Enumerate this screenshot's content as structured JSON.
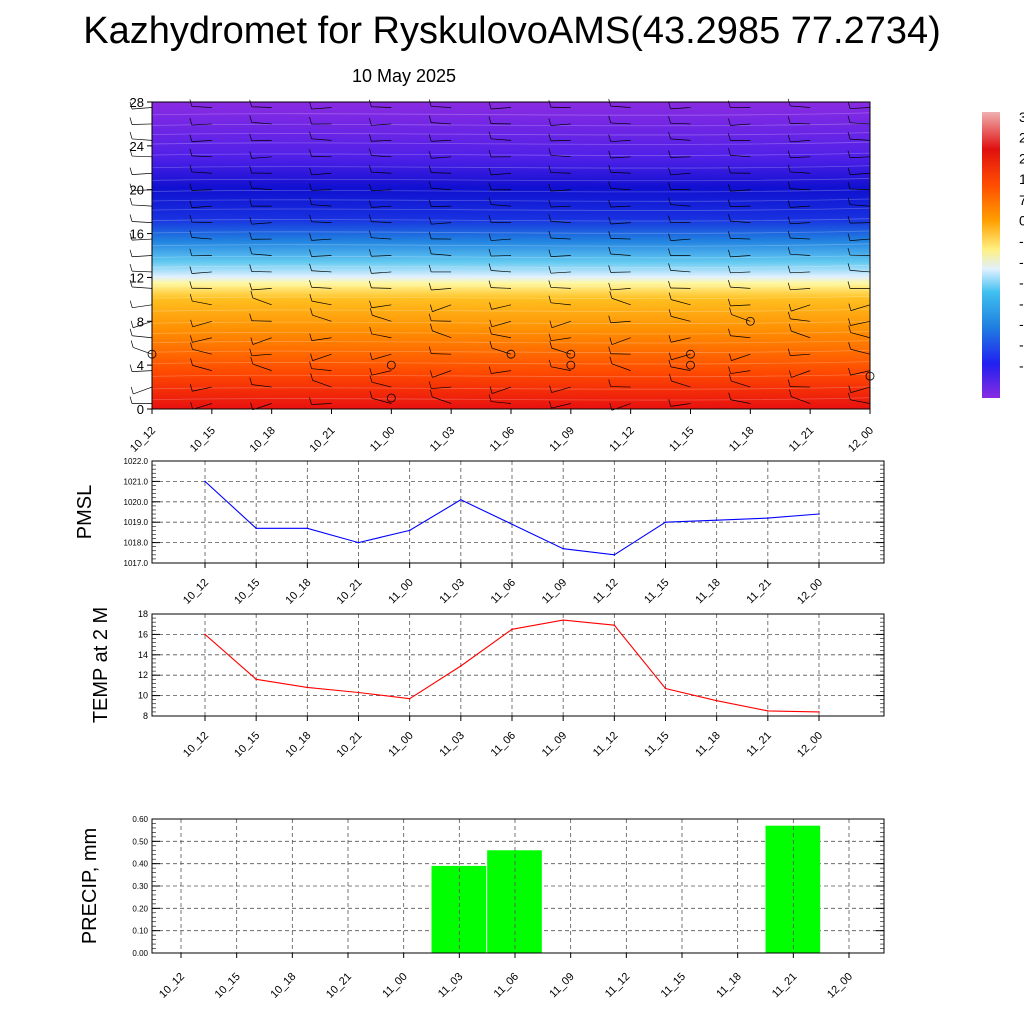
{
  "header": {
    "title": "Kazhydromet for RyskulovoAMS(43.2985 77.2734)",
    "date": "10 May 2025"
  },
  "chart_data": [
    {
      "type": "heatmap",
      "title": "",
      "x_categories": [
        "10_12",
        "10_15",
        "10_18",
        "10_21",
        "11_00",
        "11_03",
        "11_06",
        "11_09",
        "11_12",
        "11_15",
        "11_18",
        "11_21",
        "12_00"
      ],
      "y_ticks": [
        0,
        4,
        8,
        12,
        16,
        20,
        24,
        28
      ],
      "ylim": [
        0,
        28
      ],
      "colorbar_ticks": [
        "3",
        "2",
        "2",
        "1",
        "7",
        "0",
        "-",
        "-",
        "-",
        "-",
        "-",
        "-",
        "-"
      ],
      "colors": {
        "low": "#8a2be2",
        "mid": "#ffffe0",
        "high": "#e01010"
      },
      "wind_barbs": true
    },
    {
      "type": "line",
      "ylabel": "PMSL",
      "categories": [
        "10_12",
        "10_15",
        "10_18",
        "10_21",
        "11_00",
        "11_03",
        "11_06",
        "11_09",
        "11_12",
        "11_15",
        "11_18",
        "11_21",
        "12_00"
      ],
      "values": [
        1021.0,
        1018.7,
        1018.7,
        1018.0,
        1018.6,
        1020.1,
        1018.9,
        1017.7,
        1017.4,
        1019.0,
        1019.1,
        1019.2,
        1019.4
      ],
      "yticks": [
        "1017.0",
        "1018.0",
        "1019.0",
        "1020.0",
        "1021.0",
        "1022.0"
      ],
      "ylim": [
        1017,
        1022
      ],
      "color": "#0000ff",
      "grid": true
    },
    {
      "type": "line",
      "ylabel": "TEMP at 2 M",
      "categories": [
        "10_12",
        "10_15",
        "10_18",
        "10_21",
        "11_00",
        "11_03",
        "11_06",
        "11_09",
        "11_12",
        "11_15",
        "11_18",
        "11_21",
        "12_00"
      ],
      "values": [
        16.0,
        11.6,
        10.8,
        10.3,
        9.7,
        12.9,
        16.5,
        17.4,
        16.9,
        10.7,
        9.5,
        8.5,
        8.4
      ],
      "yticks": [
        "8",
        "10",
        "12",
        "14",
        "16",
        "18"
      ],
      "ylim": [
        8,
        18
      ],
      "color": "#ff0000",
      "grid": true
    },
    {
      "type": "bar",
      "ylabel": "PRECIP, mm",
      "categories": [
        "10_12",
        "10_15",
        "10_18",
        "10_21",
        "11_00",
        "11_03",
        "11_06",
        "11_09",
        "11_12",
        "11_15",
        "11_18",
        "11_21",
        "12_00"
      ],
      "values": [
        0,
        0,
        0,
        0,
        0,
        0.39,
        0.46,
        0,
        0,
        0,
        0,
        0.57,
        0
      ],
      "yticks": [
        "0.00",
        "0.10",
        "0.20",
        "0.30",
        "0.40",
        "0.50",
        "0.60"
      ],
      "ylim": [
        0,
        0.6
      ],
      "color": "#00ff00",
      "grid": true
    }
  ]
}
